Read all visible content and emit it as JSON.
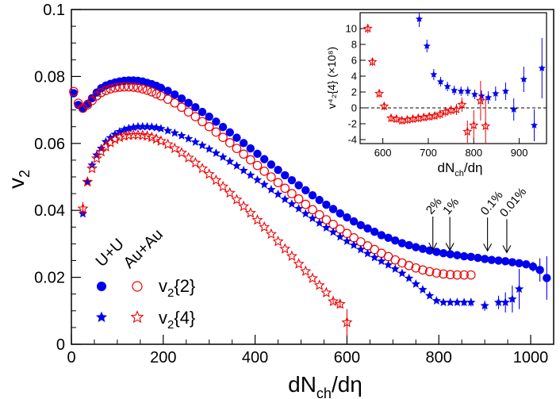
{
  "chart_data": [
    {
      "type": "scatter",
      "xlabel_main": "dN",
      "xlabel_sub": "ch",
      "xlabel_tail": "/dη",
      "ylabel_main": "v",
      "ylabel_sub": "2",
      "xlim": [
        0,
        1050
      ],
      "ylim": [
        0,
        0.1
      ],
      "xticks": [
        0,
        200,
        400,
        600,
        800,
        1000
      ],
      "yticks": [
        0,
        0.02,
        0.04,
        0.06,
        0.08,
        0.1
      ],
      "ytick_labels": [
        "0",
        "0.02",
        "0.04",
        "0.06",
        "0.08",
        "0.1"
      ],
      "legend": {
        "col_uu": "U+U",
        "col_auau": "Au+Au",
        "row1_main": "v",
        "row1_sub": "2",
        "row1_tail": "{2}",
        "row2_main": "v",
        "row2_sub": "2",
        "row2_tail": "{4}"
      },
      "annotations": [
        {
          "text": "2%",
          "x": 787,
          "y": 0.0263
        },
        {
          "text": "1%",
          "x": 824,
          "y": 0.0262
        },
        {
          "text": "0.1%",
          "x": 906,
          "y": 0.026
        },
        {
          "text": "0.01%",
          "x": 948,
          "y": 0.0255
        }
      ],
      "series": [
        {
          "name": "U+U v2{2}",
          "color": "#0000ee",
          "marker": "filled-circle",
          "x": [
            5,
            15,
            25,
            35,
            45,
            55,
            65,
            75,
            85,
            95,
            105,
            115,
            125,
            135,
            145,
            155,
            165,
            175,
            185,
            195,
            210,
            225,
            240,
            255,
            270,
            285,
            300,
            315,
            330,
            345,
            360,
            375,
            390,
            405,
            420,
            435,
            450,
            465,
            480,
            495,
            510,
            525,
            540,
            555,
            570,
            585,
            600,
            615,
            630,
            645,
            660,
            675,
            690,
            705,
            720,
            735,
            750,
            765,
            780,
            795,
            810,
            825,
            840,
            855,
            870,
            885,
            900,
            915,
            930,
            945,
            960,
            975,
            990,
            1005,
            1020,
            1035
          ],
          "y": [
            0.075,
            0.0715,
            0.0705,
            0.0718,
            0.0735,
            0.0752,
            0.0765,
            0.0773,
            0.0778,
            0.0782,
            0.0785,
            0.0787,
            0.0788,
            0.0788,
            0.0787,
            0.0785,
            0.0781,
            0.0777,
            0.0772,
            0.0766,
            0.0757,
            0.0746,
            0.0734,
            0.0721,
            0.0708,
            0.0694,
            0.068,
            0.0665,
            0.0649,
            0.0633,
            0.0617,
            0.0601,
            0.0585,
            0.0569,
            0.0553,
            0.0537,
            0.0521,
            0.0505,
            0.049,
            0.0475,
            0.046,
            0.0445,
            0.0431,
            0.0417,
            0.0404,
            0.0391,
            0.0379,
            0.0367,
            0.0356,
            0.0346,
            0.0336,
            0.0326,
            0.0318,
            0.031,
            0.0302,
            0.0296,
            0.029,
            0.0285,
            0.028,
            0.0276,
            0.0272,
            0.0269,
            0.0266,
            0.0263,
            0.0261,
            0.0258,
            0.0255,
            0.0252,
            0.025,
            0.0248,
            0.0245,
            0.0242,
            0.0239,
            0.0232,
            0.0222,
            0.0198
          ],
          "yerr": [
            0,
            0,
            0,
            0,
            0,
            0,
            0,
            0,
            0,
            0,
            0,
            0,
            0,
            0,
            0,
            0,
            0,
            0,
            0,
            0,
            0,
            0,
            0,
            0,
            0,
            0,
            0,
            0,
            0,
            0,
            0,
            0,
            0,
            0,
            0,
            0,
            0,
            0,
            0,
            0,
            0,
            0,
            0,
            0,
            0,
            0,
            0,
            0,
            0,
            0,
            0,
            0,
            0,
            0,
            0,
            0,
            0,
            0,
            0,
            0,
            0,
            0,
            0,
            0,
            0,
            0,
            0,
            0,
            0,
            0,
            0,
            0,
            0,
            0.0015,
            0.0035,
            0.0065
          ]
        },
        {
          "name": "Au+Au v2{2}",
          "color": "#ee0000",
          "marker": "open-circle",
          "x": [
            5,
            15,
            25,
            35,
            45,
            55,
            65,
            75,
            85,
            95,
            105,
            115,
            125,
            135,
            145,
            155,
            165,
            175,
            185,
            195,
            210,
            225,
            240,
            255,
            270,
            285,
            300,
            315,
            330,
            345,
            360,
            375,
            390,
            405,
            420,
            435,
            450,
            465,
            480,
            495,
            510,
            525,
            540,
            555,
            570,
            585,
            600,
            615,
            630,
            645,
            660,
            675,
            690,
            705,
            720,
            735,
            750,
            765,
            780,
            795,
            810,
            825,
            840,
            855,
            870
          ],
          "y": [
            0.0755,
            0.072,
            0.0705,
            0.0715,
            0.0728,
            0.0742,
            0.0752,
            0.0758,
            0.0763,
            0.0766,
            0.0768,
            0.0769,
            0.0769,
            0.0768,
            0.0766,
            0.0763,
            0.0759,
            0.0754,
            0.0748,
            0.0742,
            0.0732,
            0.0721,
            0.0708,
            0.0694,
            0.068,
            0.0665,
            0.065,
            0.0634,
            0.0618,
            0.0602,
            0.0585,
            0.0568,
            0.0551,
            0.0534,
            0.0517,
            0.05,
            0.0483,
            0.0466,
            0.045,
            0.0434,
            0.0418,
            0.0402,
            0.0387,
            0.0372,
            0.0358,
            0.0344,
            0.0331,
            0.0318,
            0.0306,
            0.0294,
            0.0283,
            0.0272,
            0.0262,
            0.0252,
            0.0243,
            0.0235,
            0.0228,
            0.0222,
            0.0217,
            0.0213,
            0.021,
            0.0208,
            0.0207,
            0.0207,
            0.0207
          ],
          "yerr": [
            0,
            0,
            0,
            0,
            0,
            0,
            0,
            0,
            0,
            0,
            0,
            0,
            0,
            0,
            0,
            0,
            0,
            0,
            0,
            0,
            0,
            0,
            0,
            0,
            0,
            0,
            0,
            0,
            0,
            0,
            0,
            0,
            0,
            0,
            0,
            0,
            0,
            0,
            0,
            0,
            0,
            0,
            0,
            0,
            0,
            0,
            0,
            0,
            0,
            0,
            0,
            0,
            0,
            0,
            0,
            0,
            0,
            0,
            0,
            0,
            0,
            0,
            0,
            0,
            0
          ]
        },
        {
          "name": "U+U v2{4}",
          "color": "#0000ee",
          "marker": "filled-star",
          "x": [
            25,
            35,
            45,
            55,
            65,
            75,
            85,
            95,
            105,
            115,
            125,
            135,
            145,
            155,
            165,
            175,
            185,
            195,
            210,
            225,
            240,
            255,
            270,
            285,
            300,
            315,
            330,
            345,
            360,
            375,
            390,
            405,
            420,
            435,
            450,
            465,
            480,
            495,
            510,
            525,
            540,
            555,
            570,
            585,
            600,
            615,
            630,
            645,
            660,
            675,
            690,
            705,
            720,
            735,
            750,
            765,
            780,
            795,
            810,
            825,
            840,
            855,
            870,
            900,
            930,
            945,
            960,
            975
          ],
          "y": [
            0.039,
            0.0485,
            0.0535,
            0.0565,
            0.0585,
            0.0605,
            0.0617,
            0.0627,
            0.0635,
            0.0641,
            0.0645,
            0.0648,
            0.065,
            0.065,
            0.065,
            0.0649,
            0.0647,
            0.0644,
            0.0638,
            0.0631,
            0.0623,
            0.0614,
            0.0604,
            0.0594,
            0.0583,
            0.0571,
            0.0559,
            0.0546,
            0.0533,
            0.0519,
            0.0505,
            0.0491,
            0.0477,
            0.0462,
            0.0448,
            0.0433,
            0.0419,
            0.0405,
            0.039,
            0.0376,
            0.0362,
            0.0348,
            0.0335,
            0.0321,
            0.0308,
            0.0296,
            0.0283,
            0.0271,
            0.0259,
            0.0248,
            0.0237,
            0.0225,
            0.0212,
            0.0197,
            0.018,
            0.0163,
            0.0145,
            0.013,
            0.0125,
            0.0125,
            0.0125,
            0.0125,
            0.0125,
            0.0115,
            0.0125,
            0.0125,
            0.0135,
            0.0165
          ],
          "yerr": [
            0,
            0,
            0,
            0,
            0,
            0,
            0,
            0,
            0,
            0,
            0,
            0,
            0,
            0,
            0,
            0,
            0,
            0,
            0,
            0,
            0,
            0,
            0,
            0,
            0,
            0,
            0,
            0,
            0,
            0,
            0,
            0,
            0,
            0,
            0,
            0,
            0,
            0,
            0,
            0,
            0,
            0,
            0,
            0,
            0,
            0,
            0,
            0,
            0,
            0,
            0,
            0,
            0,
            0,
            0,
            0,
            0,
            0,
            0,
            0.0008,
            0.0008,
            0.001,
            0.0012,
            0.0015,
            0.002,
            0.003,
            0.004,
            0.006
          ]
        },
        {
          "name": "Au+Au v2{4}",
          "color": "#ee0000",
          "marker": "open-star",
          "x": [
            25,
            35,
            45,
            55,
            65,
            75,
            85,
            95,
            105,
            115,
            125,
            135,
            145,
            155,
            165,
            175,
            185,
            195,
            210,
            225,
            240,
            255,
            270,
            285,
            300,
            315,
            330,
            345,
            360,
            375,
            390,
            405,
            420,
            435,
            450,
            465,
            480,
            495,
            510,
            525,
            540,
            555,
            570,
            585,
            600
          ],
          "y": [
            0.0405,
            0.0485,
            0.0525,
            0.0555,
            0.0575,
            0.059,
            0.0602,
            0.0612,
            0.0618,
            0.0622,
            0.0624,
            0.0625,
            0.0625,
            0.0624,
            0.0622,
            0.0618,
            0.0613,
            0.0607,
            0.0597,
            0.0585,
            0.0572,
            0.0557,
            0.0542,
            0.0525,
            0.0508,
            0.049,
            0.0471,
            0.0452,
            0.0432,
            0.0412,
            0.0392,
            0.0371,
            0.035,
            0.0329,
            0.0307,
            0.0285,
            0.0263,
            0.024,
            0.0218,
            0.0197,
            0.0176,
            0.0154,
            0.0128,
            0.012,
            0.0065
          ],
          "yerr": [
            0.002,
            0,
            0,
            0,
            0,
            0,
            0,
            0,
            0,
            0,
            0,
            0,
            0,
            0,
            0,
            0,
            0,
            0,
            0,
            0,
            0,
            0,
            0,
            0,
            0,
            0,
            0,
            0,
            0,
            0,
            0,
            0,
            0,
            0,
            0,
            0,
            0,
            0,
            0,
            0,
            0,
            0,
            0.0008,
            0.0012,
            0.004
          ]
        }
      ]
    },
    {
      "type": "scatter",
      "inset": true,
      "xlabel_main": "dN",
      "xlabel_sub": "ch",
      "xlabel_tail": "/dη",
      "ylabel": "v⁴₂{4} (×10⁸)",
      "xlim": [
        550,
        960
      ],
      "ylim": [
        -4.5,
        12
      ],
      "xticks": [
        600,
        700,
        800,
        900
      ],
      "yticks": [
        -4,
        -2,
        0,
        2,
        4,
        6,
        8,
        10
      ],
      "reference_line_y": 0,
      "series": [
        {
          "name": "U+U",
          "color": "#0000ee",
          "marker": "filled-star",
          "x": [
            680,
            697,
            712,
            727,
            742,
            757,
            772,
            787,
            802,
            817,
            832,
            848,
            870,
            888,
            910,
            933,
            950
          ],
          "y": [
            11.2,
            7.8,
            4.2,
            3.3,
            2.7,
            2.2,
            2.1,
            2.1,
            1.7,
            1.5,
            1.3,
            1.8,
            2.1,
            -0.2,
            3.6,
            -2.2,
            5.0
          ],
          "yerr": [
            1.0,
            0.8,
            0.7,
            0.6,
            0.6,
            0.6,
            0.6,
            0.6,
            0.6,
            0.7,
            0.8,
            0.9,
            1.1,
            1.4,
            1.6,
            2.0,
            3.8
          ]
        },
        {
          "name": "Au+Au",
          "color": "#ee0000",
          "marker": "open-star",
          "x": [
            567,
            577,
            592,
            603,
            618,
            630,
            642,
            654,
            666,
            678,
            690,
            702,
            714,
            726,
            738,
            750,
            762,
            774,
            786,
            800,
            815,
            826
          ],
          "y": [
            10.0,
            5.8,
            1.8,
            0.2,
            -1.3,
            -1.4,
            -1.6,
            -1.5,
            -1.4,
            -1.3,
            -1.2,
            -1.1,
            -1.0,
            -0.8,
            -0.5,
            -0.3,
            -0.2,
            0.4,
            -3.0,
            -2.2,
            0.9,
            -2.3
          ],
          "yerr": [
            0.6,
            0.5,
            0.5,
            0.5,
            0.5,
            0.5,
            0.5,
            0.5,
            0.5,
            0.5,
            0.5,
            0.5,
            0.5,
            0.6,
            0.6,
            0.6,
            0.7,
            0.9,
            1.4,
            1.9,
            2.5,
            3.6
          ]
        }
      ]
    }
  ]
}
